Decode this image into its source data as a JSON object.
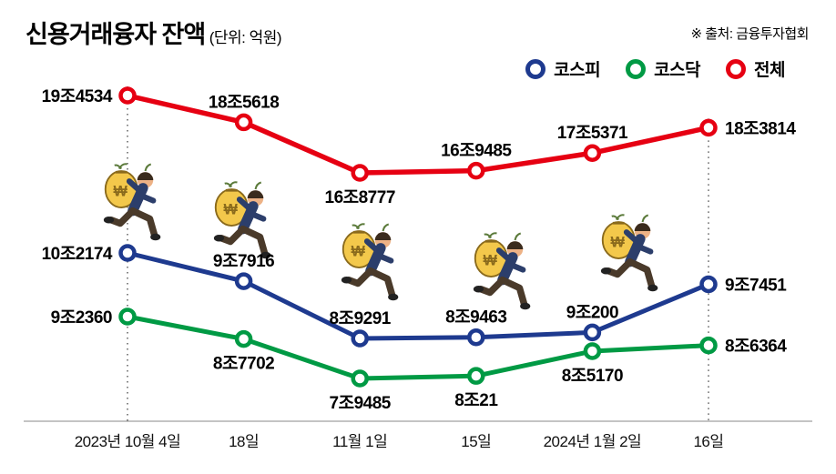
{
  "header": {
    "title": "신용거래융자 잔액",
    "unit": "(단위: 억원)",
    "source": "※ 출처: 금융투자협회"
  },
  "legend": [
    {
      "label": "코스피",
      "color": "#1e3a8f"
    },
    {
      "label": "코스닥",
      "color": "#009a44"
    },
    {
      "label": "전체",
      "color": "#e60012"
    }
  ],
  "chart_data": {
    "type": "line",
    "title": "신용거래융자 잔액",
    "unit_label": "단위: 억원",
    "source": "금융투자협회",
    "legend_position": "top-right",
    "grid": false,
    "guide_lines": "dotted vertical lines at first and last data points",
    "categories": [
      "2023년 10월 4일",
      "18일",
      "11월 1일",
      "15일",
      "2024년 1월 2일",
      "16일"
    ],
    "series": [
      {
        "name": "코스피",
        "color": "#1e3a8f",
        "values": [
          102174,
          97916,
          89291,
          89463,
          90200,
          97451
        ],
        "labels": [
          "10조2174",
          "9조7916",
          "8조9291",
          "8조9463",
          "9조200",
          "9조7451"
        ],
        "label_pos": [
          "left",
          "above",
          "above",
          "above",
          "above",
          "right"
        ]
      },
      {
        "name": "코스닥",
        "color": "#009a44",
        "values": [
          92360,
          87702,
          79485,
          80021,
          85170,
          86364
        ],
        "labels": [
          "9조2360",
          "8조7702",
          "7조9485",
          "8조21",
          "8조5170",
          "8조6364"
        ],
        "label_pos": [
          "left",
          "below",
          "below",
          "below",
          "below",
          "right"
        ]
      },
      {
        "name": "전체",
        "color": "#e60012",
        "values": [
          194534,
          185618,
          168777,
          169485,
          175371,
          183814
        ],
        "labels": [
          "19조4534",
          "18조5618",
          "16조8777",
          "16조9485",
          "17조5371",
          "18조3814"
        ],
        "label_pos": [
          "left",
          "above",
          "below",
          "above",
          "above",
          "right"
        ]
      }
    ]
  }
}
